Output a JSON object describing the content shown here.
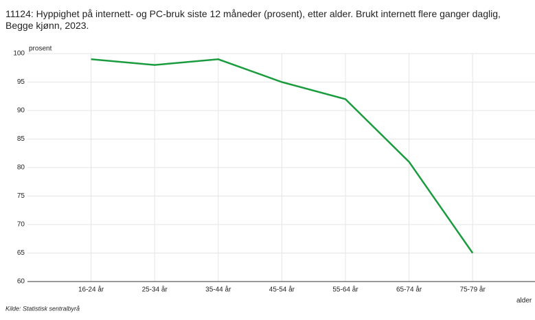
{
  "chart_data": {
    "type": "line",
    "title": "11124: Hyppighet på internett- og PC-bruk siste 12 måneder (prosent), etter alder. Brukt internett flere ganger daglig, Begge kjønn, 2023.",
    "y_label": "prosent",
    "x_label": "alder",
    "source": "Kilde:  Statistisk sentralbyrå",
    "categories": [
      "16-24 år",
      "25-34 år",
      "35-44 år",
      "45-54 år",
      "55-64 år",
      "65-74 år",
      "75-79 år"
    ],
    "series": [
      {
        "name": "Brukt internett flere ganger daglig",
        "color": "#1a9c3e",
        "values": [
          99,
          98,
          99,
          95,
          92,
          81,
          65
        ]
      }
    ],
    "ylim": [
      60,
      100
    ],
    "yticks": [
      60,
      65,
      70,
      75,
      80,
      85,
      90,
      95,
      100
    ],
    "grid": true
  }
}
